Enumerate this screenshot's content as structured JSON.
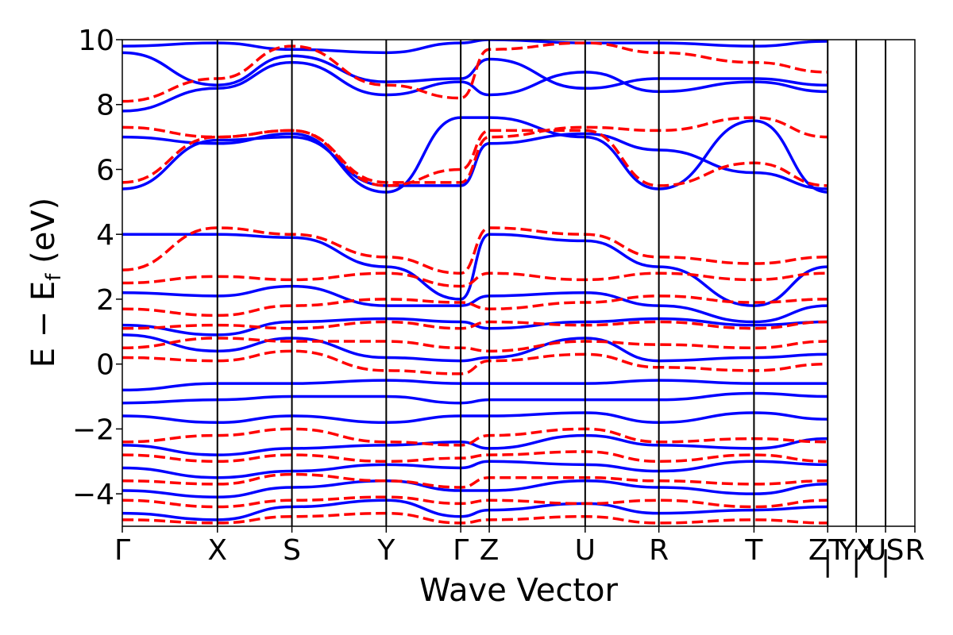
{
  "chart_data": {
    "type": "line",
    "title": "",
    "xlabel": "Wave Vector",
    "ylabel": "E − E",
    "ylabel_subscript": "f",
    "ylabel_unit": "(eV)",
    "ylim": [
      -5,
      10
    ],
    "xlim": [
      0,
      1
    ],
    "yticks": [
      -4,
      -2,
      0,
      2,
      4,
      6,
      8,
      10
    ],
    "ytick_labels": [
      "−4",
      "−2",
      "0",
      "2",
      "4",
      "6",
      "8",
      "10"
    ],
    "kpath": [
      {
        "label": "Γ",
        "k": 0.0
      },
      {
        "label": "X",
        "k": 0.12
      },
      {
        "label": "S",
        "k": 0.214
      },
      {
        "label": "Y",
        "k": 0.333
      },
      {
        "label": "Γ",
        "k": 0.427
      },
      {
        "label": "Z",
        "k": 0.463
      },
      {
        "label": "U",
        "k": 0.584
      },
      {
        "label": "R",
        "k": 0.677
      },
      {
        "label": "T",
        "k": 0.797
      },
      {
        "label": "Z",
        "k": 0.89
      },
      {
        "label": "|",
        "k": 0.89
      },
      {
        "label": "T",
        "k": 0.89
      },
      {
        "label": "Y",
        "k": 0.926
      },
      {
        "label": "|",
        "k": 0.926
      },
      {
        "label": "X",
        "k": 0.926
      },
      {
        "label": "U",
        "k": 0.963
      },
      {
        "label": "|",
        "k": 0.963
      },
      {
        "label": "S",
        "k": 0.963
      },
      {
        "label": "R",
        "k": 1.0
      }
    ],
    "series": [
      {
        "style": "solid",
        "color": "#0000ff",
        "bands": [
          [
            9.8,
            9.9,
            9.7,
            9.6,
            9.9,
            10.0,
            9.9,
            9.9,
            9.8,
            9.95
          ],
          [
            9.6,
            8.6,
            9.5,
            8.7,
            8.8,
            9.4,
            8.5,
            8.8,
            8.8,
            8.6
          ],
          [
            7.8,
            8.5,
            9.3,
            8.3,
            8.7,
            8.3,
            9.0,
            8.4,
            8.7,
            8.4
          ],
          [
            7.0,
            6.8,
            7.1,
            5.3,
            7.6,
            7.6,
            7.0,
            5.4,
            7.5,
            5.3
          ],
          [
            5.4,
            6.9,
            7.0,
            5.5,
            5.5,
            6.8,
            7.1,
            6.6,
            5.9,
            5.4
          ],
          [
            4.0,
            4.0,
            3.9,
            3.0,
            2.0,
            4.0,
            3.8,
            3.0,
            1.8,
            3.0
          ],
          [
            2.2,
            2.1,
            2.4,
            1.8,
            1.8,
            2.1,
            2.2,
            1.8,
            1.3,
            1.8
          ],
          [
            1.2,
            0.9,
            1.3,
            1.4,
            1.3,
            1.1,
            1.3,
            1.4,
            1.2,
            1.3
          ],
          [
            0.9,
            0.4,
            0.8,
            0.2,
            0.1,
            0.2,
            0.8,
            0.1,
            0.2,
            0.3
          ],
          [
            -0.8,
            -0.6,
            -0.6,
            -0.5,
            -0.6,
            -0.6,
            -0.6,
            -0.5,
            -0.6,
            -0.6
          ],
          [
            -1.2,
            -1.1,
            -1.0,
            -1.0,
            -1.2,
            -1.1,
            -1.1,
            -1.1,
            -0.9,
            -1.0
          ],
          [
            -1.6,
            -1.8,
            -1.6,
            -1.8,
            -1.6,
            -1.6,
            -1.5,
            -1.8,
            -1.5,
            -1.7
          ],
          [
            -2.5,
            -2.8,
            -2.6,
            -2.5,
            -2.4,
            -2.6,
            -2.2,
            -2.5,
            -2.6,
            -2.3
          ],
          [
            -3.2,
            -3.5,
            -3.3,
            -3.1,
            -3.2,
            -3.0,
            -3.1,
            -3.3,
            -3.0,
            -3.1
          ],
          [
            -3.9,
            -4.1,
            -3.8,
            -3.6,
            -3.9,
            -3.9,
            -3.6,
            -3.8,
            -4.0,
            -3.7
          ],
          [
            -4.6,
            -4.8,
            -4.4,
            -4.2,
            -4.7,
            -4.5,
            -4.3,
            -4.6,
            -4.5,
            -4.4
          ]
        ]
      },
      {
        "style": "dashed",
        "color": "#ff0000",
        "bands": [
          [
            8.1,
            8.8,
            9.8,
            8.6,
            8.2,
            9.7,
            9.9,
            9.6,
            9.3,
            9.0
          ],
          [
            7.3,
            7.0,
            7.2,
            5.5,
            6.0,
            7.2,
            7.2,
            5.5,
            6.2,
            5.5
          ],
          [
            5.6,
            7.0,
            7.2,
            5.6,
            5.6,
            7.0,
            7.3,
            7.2,
            7.6,
            7.0
          ],
          [
            2.9,
            4.2,
            4.0,
            3.3,
            2.8,
            4.2,
            4.0,
            3.3,
            3.1,
            3.3
          ],
          [
            2.5,
            2.7,
            2.6,
            2.8,
            2.4,
            2.8,
            2.6,
            2.8,
            2.6,
            2.8
          ],
          [
            1.7,
            1.5,
            1.8,
            2.0,
            1.9,
            1.7,
            1.9,
            2.1,
            1.9,
            2.0
          ],
          [
            1.1,
            1.2,
            1.1,
            1.3,
            1.1,
            1.3,
            1.2,
            1.3,
            1.1,
            1.3
          ],
          [
            0.5,
            0.8,
            0.7,
            0.7,
            0.5,
            0.4,
            0.7,
            0.6,
            0.5,
            0.7
          ],
          [
            0.2,
            0.1,
            0.4,
            -0.2,
            -0.3,
            0.1,
            0.3,
            -0.1,
            -0.2,
            0.0
          ],
          [
            -2.4,
            -2.2,
            -2.0,
            -2.4,
            -2.5,
            -2.2,
            -2.0,
            -2.4,
            -2.3,
            -2.4
          ],
          [
            -2.8,
            -3.0,
            -2.8,
            -3.0,
            -2.9,
            -2.8,
            -2.7,
            -3.0,
            -2.8,
            -3.0
          ],
          [
            -3.6,
            -3.7,
            -3.4,
            -3.6,
            -3.8,
            -3.5,
            -3.5,
            -3.6,
            -3.7,
            -3.6
          ],
          [
            -4.2,
            -4.4,
            -4.2,
            -4.1,
            -4.3,
            -4.2,
            -4.3,
            -4.2,
            -4.4,
            -4.2
          ],
          [
            -4.8,
            -4.9,
            -4.7,
            -4.6,
            -4.9,
            -4.8,
            -4.7,
            -4.9,
            -4.8,
            -4.9
          ]
        ]
      }
    ]
  }
}
